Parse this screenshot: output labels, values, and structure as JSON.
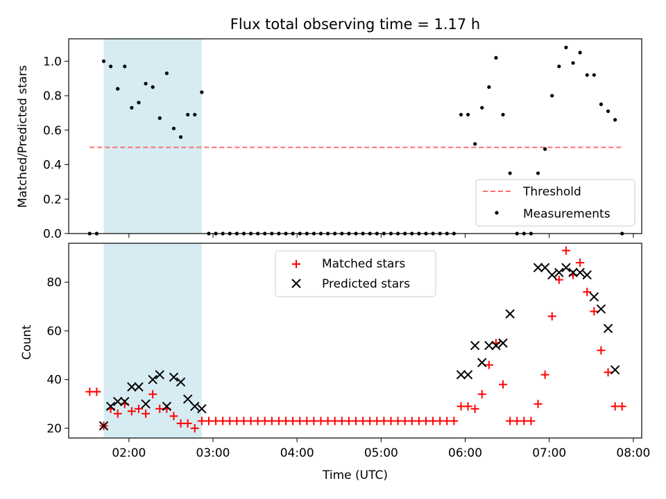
{
  "figure": {
    "title": "Flux total observing time = 1.17 h"
  },
  "colors": {
    "shade": "#add8e6",
    "threshold": "#ff6f6f",
    "measurement": "#000000",
    "matched": "#ff0000",
    "predicted": "#000000"
  },
  "chart_data": [
    {
      "type": "scatter",
      "ylabel": "Matched/Predicted stars",
      "xlim": [
        "01:17",
        "08:06"
      ],
      "ylim": [
        0,
        1.13
      ],
      "yticks": [
        "0.0",
        "0.2",
        "0.4",
        "0.6",
        "0.8",
        "1.0"
      ],
      "shaded_interval": [
        "01:42",
        "02:52"
      ],
      "legend": {
        "placement": "lower right"
      },
      "series": [
        {
          "name": "Threshold",
          "style": "dashed-line",
          "x": [
            "01:32",
            "07:52"
          ],
          "y": [
            0.5,
            0.5
          ]
        },
        {
          "name": "Measurements",
          "style": "dot",
          "x": [
            "01:32",
            "01:37",
            "01:42",
            "01:47",
            "01:52",
            "01:57",
            "02:02",
            "02:07",
            "02:12",
            "02:17",
            "02:22",
            "02:27",
            "02:32",
            "02:37",
            "02:42",
            "02:47",
            "02:52",
            "02:57",
            "03:02",
            "03:07",
            "03:12",
            "03:17",
            "03:22",
            "03:27",
            "03:32",
            "03:37",
            "03:42",
            "03:47",
            "03:52",
            "03:57",
            "04:02",
            "04:07",
            "04:12",
            "04:17",
            "04:22",
            "04:27",
            "04:32",
            "04:37",
            "04:42",
            "04:47",
            "04:52",
            "04:57",
            "05:02",
            "05:07",
            "05:12",
            "05:17",
            "05:22",
            "05:27",
            "05:32",
            "05:37",
            "05:42",
            "05:47",
            "05:52",
            "05:57",
            "06:02",
            "06:07",
            "06:12",
            "06:17",
            "06:22",
            "06:27",
            "06:32",
            "06:37",
            "06:42",
            "06:47",
            "06:52",
            "06:57",
            "07:02",
            "07:07",
            "07:12",
            "07:17",
            "07:22",
            "07:27",
            "07:32",
            "07:37",
            "07:42",
            "07:47",
            "07:52"
          ],
          "y": [
            0,
            0,
            1.0,
            0.97,
            0.84,
            0.97,
            0.73,
            0.76,
            0.87,
            0.85,
            0.67,
            0.93,
            0.61,
            0.56,
            0.69,
            0.69,
            0.82,
            0,
            0,
            0,
            0,
            0,
            0,
            0,
            0,
            0,
            0,
            0,
            0,
            0,
            0,
            0,
            0,
            0,
            0,
            0,
            0,
            0,
            0,
            0,
            0,
            0,
            0,
            0,
            0,
            0,
            0,
            0,
            0,
            0,
            0,
            0,
            0,
            0.69,
            0.69,
            0.52,
            0.73,
            0.85,
            1.02,
            0.69,
            0.35,
            0,
            0,
            0,
            0.35,
            0.49,
            0.8,
            0.97,
            1.08,
            0.99,
            1.05,
            0.92,
            0.92,
            0.75,
            0.71,
            0.66,
            0
          ]
        }
      ]
    },
    {
      "type": "scatter",
      "xlabel": "Time (UTC)",
      "ylabel": "Count",
      "xlim": [
        "01:17",
        "08:06"
      ],
      "ylim": [
        16,
        96
      ],
      "yticks": [
        "20",
        "40",
        "60",
        "80"
      ],
      "xticks": [
        "02:00",
        "03:00",
        "04:00",
        "05:00",
        "06:00",
        "07:00",
        "08:00"
      ],
      "shaded_interval": [
        "01:42",
        "02:52"
      ],
      "legend": {
        "placement": "upper center"
      },
      "series": [
        {
          "name": "Matched stars",
          "style": "plus",
          "x": [
            "01:32",
            "01:37",
            "01:42",
            "01:47",
            "01:52",
            "01:57",
            "02:02",
            "02:07",
            "02:12",
            "02:17",
            "02:22",
            "02:27",
            "02:32",
            "02:37",
            "02:42",
            "02:47",
            "02:52",
            "02:57",
            "03:02",
            "03:07",
            "03:12",
            "03:17",
            "03:22",
            "03:27",
            "03:32",
            "03:37",
            "03:42",
            "03:47",
            "03:52",
            "03:57",
            "04:02",
            "04:07",
            "04:12",
            "04:17",
            "04:22",
            "04:27",
            "04:32",
            "04:37",
            "04:42",
            "04:47",
            "04:52",
            "04:57",
            "05:02",
            "05:07",
            "05:12",
            "05:17",
            "05:22",
            "05:27",
            "05:32",
            "05:37",
            "05:42",
            "05:47",
            "05:52",
            "05:57",
            "06:02",
            "06:07",
            "06:12",
            "06:17",
            "06:22",
            "06:27",
            "06:32",
            "06:37",
            "06:42",
            "06:47",
            "06:52",
            "06:57",
            "07:02",
            "07:07",
            "07:12",
            "07:17",
            "07:22",
            "07:27",
            "07:32",
            "07:37",
            "07:42",
            "07:47",
            "07:52"
          ],
          "y": [
            35,
            35,
            21,
            28,
            26,
            30,
            27,
            28,
            26,
            34,
            28,
            28,
            25,
            22,
            22,
            20,
            23,
            23,
            23,
            23,
            23,
            23,
            23,
            23,
            23,
            23,
            23,
            23,
            23,
            23,
            23,
            23,
            23,
            23,
            23,
            23,
            23,
            23,
            23,
            23,
            23,
            23,
            23,
            23,
            23,
            23,
            23,
            23,
            23,
            23,
            23,
            23,
            23,
            29,
            29,
            28,
            34,
            46,
            55,
            38,
            23,
            23,
            23,
            23,
            30,
            42,
            66,
            81,
            93,
            83,
            88,
            76,
            68,
            52,
            43,
            29,
            29
          ]
        },
        {
          "name": "Predicted stars",
          "style": "x",
          "x": [
            "01:42",
            "01:47",
            "01:52",
            "01:57",
            "02:02",
            "02:07",
            "02:12",
            "02:17",
            "02:22",
            "02:27",
            "02:32",
            "02:37",
            "02:42",
            "02:47",
            "02:52",
            "05:57",
            "06:02",
            "06:07",
            "06:12",
            "06:17",
            "06:22",
            "06:27",
            "06:32",
            "06:52",
            "06:57",
            "07:02",
            "07:07",
            "07:12",
            "07:17",
            "07:22",
            "07:27",
            "07:32",
            "07:37",
            "07:42",
            "07:47"
          ],
          "y": [
            21,
            29,
            31,
            31,
            37,
            37,
            30,
            40,
            42,
            29,
            41,
            39,
            32,
            29,
            28,
            42,
            42,
            54,
            47,
            54,
            54,
            55,
            67,
            86,
            86,
            83,
            84,
            86,
            84,
            84,
            83,
            74,
            69,
            61,
            44
          ]
        }
      ]
    }
  ]
}
